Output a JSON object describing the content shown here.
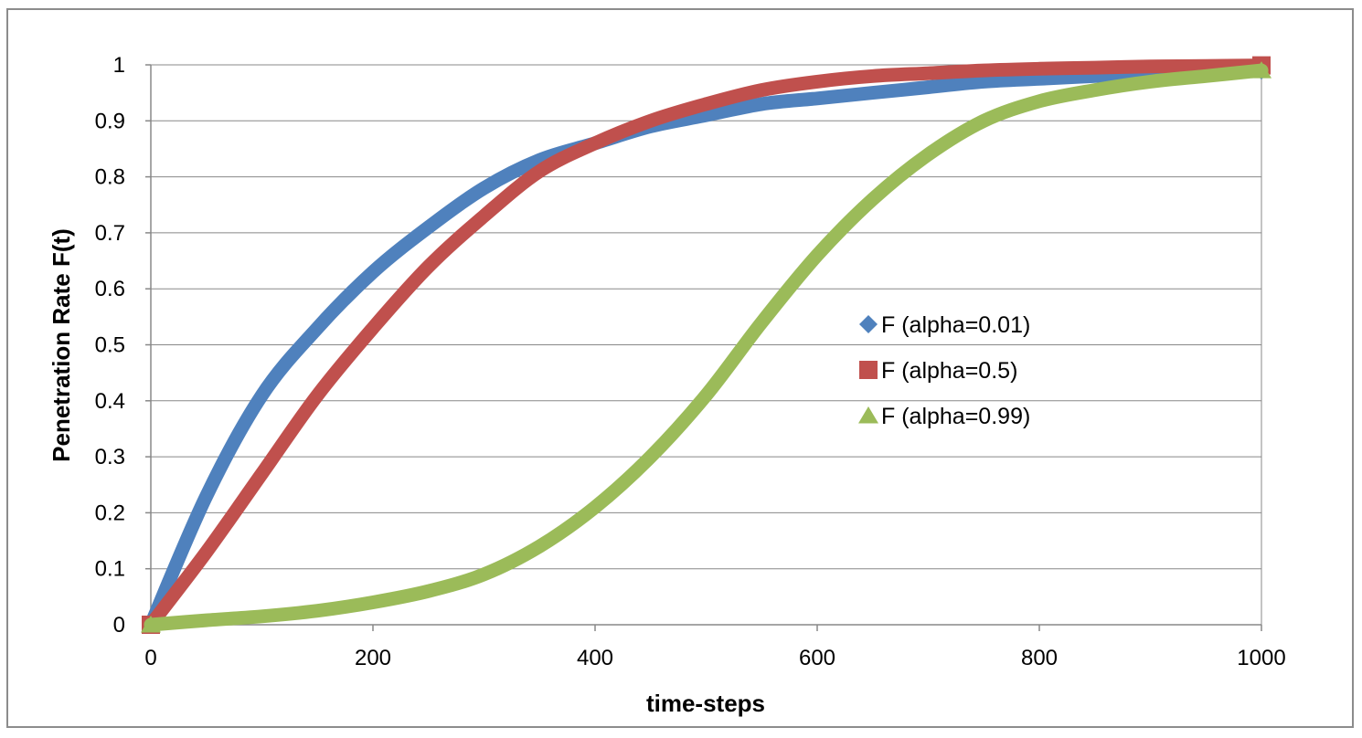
{
  "chart_data": {
    "type": "line",
    "title": "",
    "xlabel": "time-steps",
    "ylabel": "Penetration Rate F(t)",
    "xlim": [
      0,
      1000
    ],
    "ylim": [
      0,
      1
    ],
    "x_ticks": [
      0,
      200,
      400,
      600,
      800,
      1000
    ],
    "y_ticks": [
      0,
      0.1,
      0.2,
      0.3,
      0.4,
      0.5,
      0.6,
      0.7,
      0.8,
      0.9,
      1
    ],
    "x_tick_labels": [
      "0",
      "200",
      "400",
      "600",
      "800",
      "1000"
    ],
    "y_tick_labels": [
      "0",
      "0.1",
      "0.2",
      "0.3",
      "0.4",
      "0.5",
      "0.6",
      "0.7",
      "0.8",
      "0.9",
      "1"
    ],
    "grid": "horizontal",
    "legend_position": "right-center",
    "series": [
      {
        "name": "F (alpha=0.01)",
        "marker": "diamond",
        "color": "#4f81bd",
        "x": [
          0,
          50,
          100,
          150,
          200,
          250,
          300,
          350,
          400,
          450,
          500,
          550,
          600,
          650,
          700,
          750,
          800,
          850,
          900,
          950,
          1000
        ],
        "y": [
          0.0,
          0.23,
          0.41,
          0.53,
          0.63,
          0.71,
          0.78,
          0.83,
          0.86,
          0.89,
          0.91,
          0.93,
          0.94,
          0.95,
          0.96,
          0.97,
          0.975,
          0.98,
          0.985,
          0.99,
          0.99
        ]
      },
      {
        "name": "F (alpha=0.5)",
        "marker": "square",
        "color": "#c0504d",
        "x": [
          0,
          50,
          100,
          150,
          200,
          250,
          300,
          350,
          400,
          450,
          500,
          550,
          600,
          650,
          700,
          750,
          800,
          850,
          900,
          950,
          1000
        ],
        "y": [
          0.0,
          0.13,
          0.27,
          0.41,
          0.53,
          0.64,
          0.73,
          0.81,
          0.86,
          0.9,
          0.93,
          0.955,
          0.97,
          0.98,
          0.985,
          0.99,
          0.993,
          0.995,
          0.997,
          0.998,
          0.999
        ]
      },
      {
        "name": "F (alpha=0.99)",
        "marker": "triangle",
        "color": "#9bbb59",
        "x": [
          0,
          50,
          100,
          150,
          200,
          250,
          300,
          350,
          400,
          450,
          500,
          550,
          600,
          650,
          700,
          750,
          800,
          850,
          900,
          950,
          1000
        ],
        "y": [
          0.0,
          0.008,
          0.015,
          0.025,
          0.04,
          0.06,
          0.09,
          0.14,
          0.21,
          0.3,
          0.41,
          0.54,
          0.66,
          0.76,
          0.84,
          0.9,
          0.935,
          0.955,
          0.97,
          0.98,
          0.99
        ]
      }
    ]
  }
}
